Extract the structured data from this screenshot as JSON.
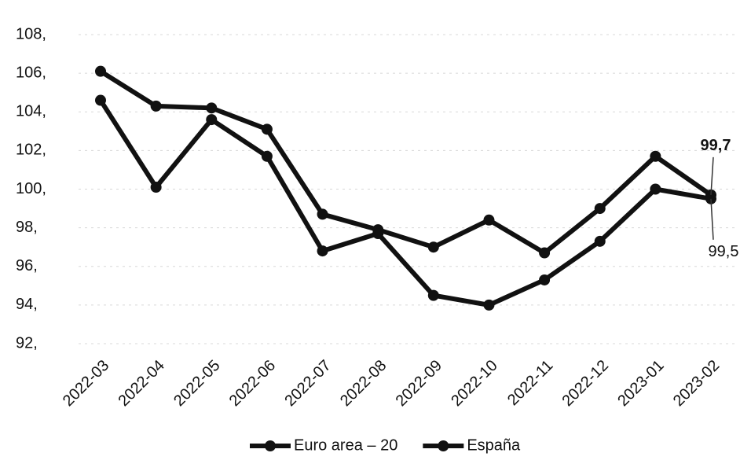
{
  "chart_data": {
    "type": "line",
    "categories": [
      "2022-03",
      "2022-04",
      "2022-05",
      "2022-06",
      "2022-07",
      "2022-08",
      "2022-09",
      "2022-10",
      "2022-11",
      "2022-12",
      "2023-01",
      "2023-02"
    ],
    "series": [
      {
        "name": "Euro area – 20",
        "color": "#111111",
        "values": [
          106.1,
          104.3,
          104.2,
          103.1,
          98.7,
          97.9,
          97.0,
          98.4,
          96.7,
          99.0,
          101.7,
          99.7
        ],
        "value_labels": [
          null,
          null,
          null,
          null,
          null,
          null,
          null,
          null,
          null,
          null,
          null,
          "99,7"
        ]
      },
      {
        "name": "España",
        "color": "#111111",
        "values": [
          104.6,
          100.1,
          103.6,
          101.7,
          96.8,
          97.7,
          94.5,
          94.0,
          95.3,
          97.3,
          100.0,
          99.5
        ],
        "value_labels": [
          null,
          null,
          null,
          null,
          null,
          null,
          null,
          null,
          null,
          null,
          null,
          "99,5"
        ]
      }
    ],
    "ylim": [
      92,
      108
    ],
    "yticks": [
      {
        "value": 92,
        "label": "92,"
      },
      {
        "value": 94,
        "label": "94,"
      },
      {
        "value": 96,
        "label": "96,"
      },
      {
        "value": 98,
        "label": "98,"
      },
      {
        "value": 100,
        "label": "100,"
      },
      {
        "value": 102,
        "label": "102,"
      },
      {
        "value": 104,
        "label": "104,"
      },
      {
        "value": 106,
        "label": "106,"
      },
      {
        "value": 108,
        "label": "108,"
      }
    ],
    "grid": true,
    "legend": "bottom"
  }
}
